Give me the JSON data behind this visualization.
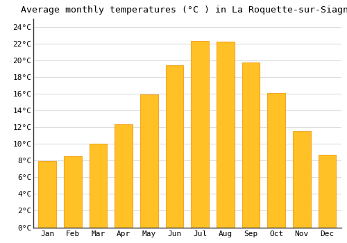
{
  "title": "Average monthly temperatures (°C ) in La Roquette-sur-Siagne",
  "months": [
    "Jan",
    "Feb",
    "Mar",
    "Apr",
    "May",
    "Jun",
    "Jul",
    "Aug",
    "Sep",
    "Oct",
    "Nov",
    "Dec"
  ],
  "values": [
    7.9,
    8.5,
    10.0,
    12.3,
    15.9,
    19.4,
    22.3,
    22.2,
    19.7,
    16.1,
    11.5,
    8.7
  ],
  "bar_color": "#FFC125",
  "bar_edge_color": "#F5A623",
  "background_color": "#FFFFFF",
  "grid_color": "#DDDDDD",
  "ylim": [
    0,
    25
  ],
  "yticks": [
    0,
    2,
    4,
    6,
    8,
    10,
    12,
    14,
    16,
    18,
    20,
    22,
    24
  ],
  "title_fontsize": 9.5,
  "tick_fontsize": 8,
  "font_family": "monospace"
}
